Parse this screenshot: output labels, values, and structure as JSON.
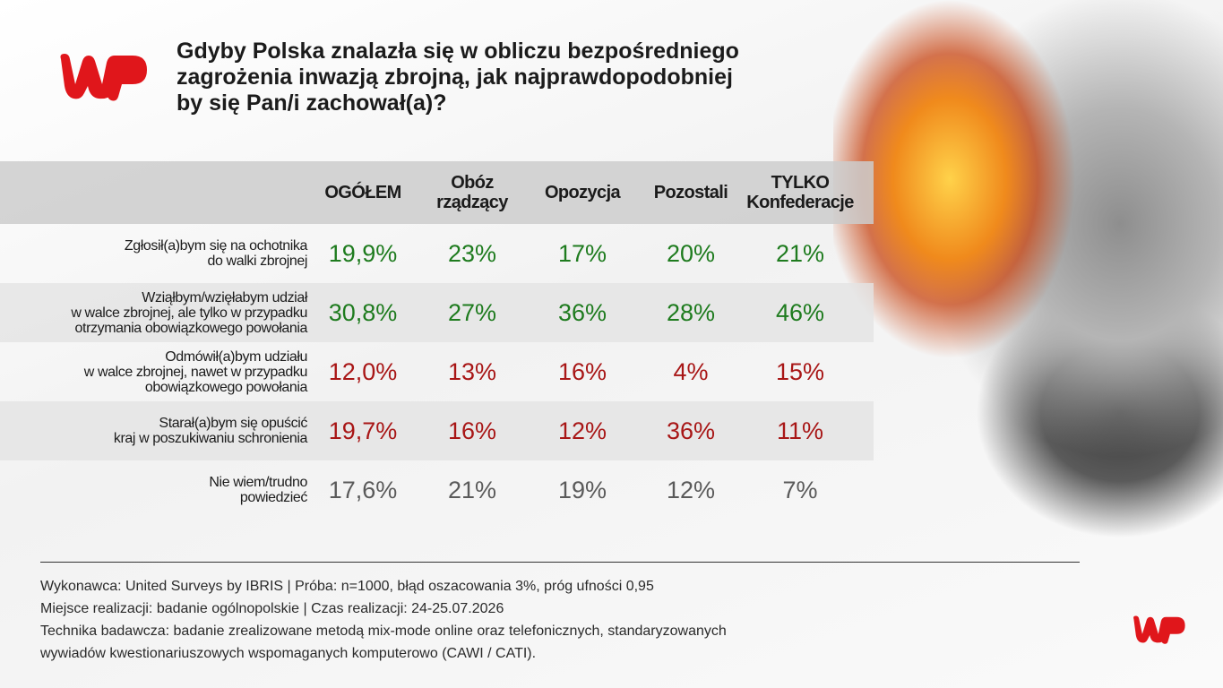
{
  "header": {
    "title": "Gdyby Polska znalazła się w obliczu bezpośredniego\nzagrożenia inwazją zbrojną, jak najprawdopodobniej\nby się Pan/i zachował(a)?"
  },
  "table": {
    "columns": [
      "OGÓŁEM",
      "Obóz\nrządzący",
      "Opozycja",
      "Pozostali",
      "TYLKO\nKonfederacje"
    ],
    "rows": [
      {
        "label": "Zgłosił(a)bym się na ochotnika\ndo walki zbrojnej",
        "color": "#1e7b1e",
        "cells": [
          "19,9%",
          "23%",
          "17%",
          "20%",
          "21%"
        ]
      },
      {
        "label": "Wziąłbym/wzięłabym udział\nw walce zbrojnej, ale tylko w przypadku\notrzymania obowiązkowego powołania",
        "color": "#1e7b1e",
        "cells": [
          "30,8%",
          "27%",
          "36%",
          "28%",
          "46%"
        ]
      },
      {
        "label": "Odmówił(a)bym udziału\nw walce zbrojnej, nawet w przypadku\nobowiązkowego powołania",
        "color": "#a81616",
        "cells": [
          "12,0%",
          "13%",
          "16%",
          "4%",
          "15%"
        ]
      },
      {
        "label": "Starał(a)bym się opuścić\nkraj w poszukiwaniu schronienia",
        "color": "#a81616",
        "cells": [
          "19,7%",
          "16%",
          "12%",
          "36%",
          "11%"
        ]
      },
      {
        "label": "Nie wiem/trudno\npowiedzieć",
        "color": "#5a5a5a",
        "cells": [
          "17,6%",
          "21%",
          "19%",
          "12%",
          "7%"
        ]
      }
    ]
  },
  "footer": {
    "lines": [
      "Wykonawca: United Surveys by IBRIS | Próba: n=1000, błąd oszacowania 3%, próg ufności 0,95",
      "Miejsce realizacji: badanie ogólnopolskie | Czas realizacji: 24-25.07.2026",
      "Technika badawcza: badanie zrealizowane metodą mix-mode online oraz telefonicznych, standaryzowanych",
      "wywiadów kwestionariuszowych wspomaganych komputerowo (CAWI / CATI)."
    ]
  }
}
